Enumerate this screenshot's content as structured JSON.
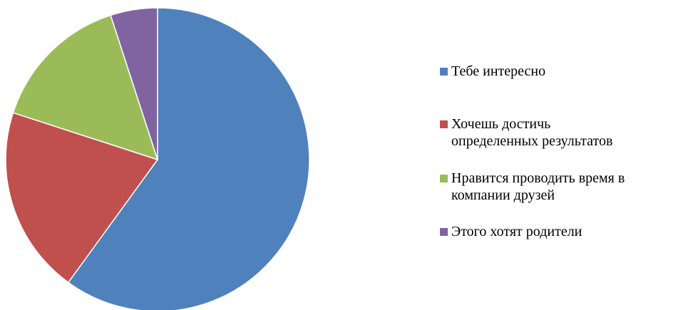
{
  "chart_data": {
    "type": "pie",
    "title": "",
    "legend_position": "right",
    "slices": [
      {
        "label": "Тебе интересно",
        "value": 60,
        "color": "#4f81bd"
      },
      {
        "label": "Хочешь достичь\nопределенных результатов",
        "value": 20,
        "color": "#c0504d"
      },
      {
        "label": "Нравится проводить время в\nкомпании друзей",
        "value": 15,
        "color": "#9bbb59"
      },
      {
        "label": "Этого хотят родители",
        "value": 5,
        "color": "#8064a2"
      }
    ]
  }
}
